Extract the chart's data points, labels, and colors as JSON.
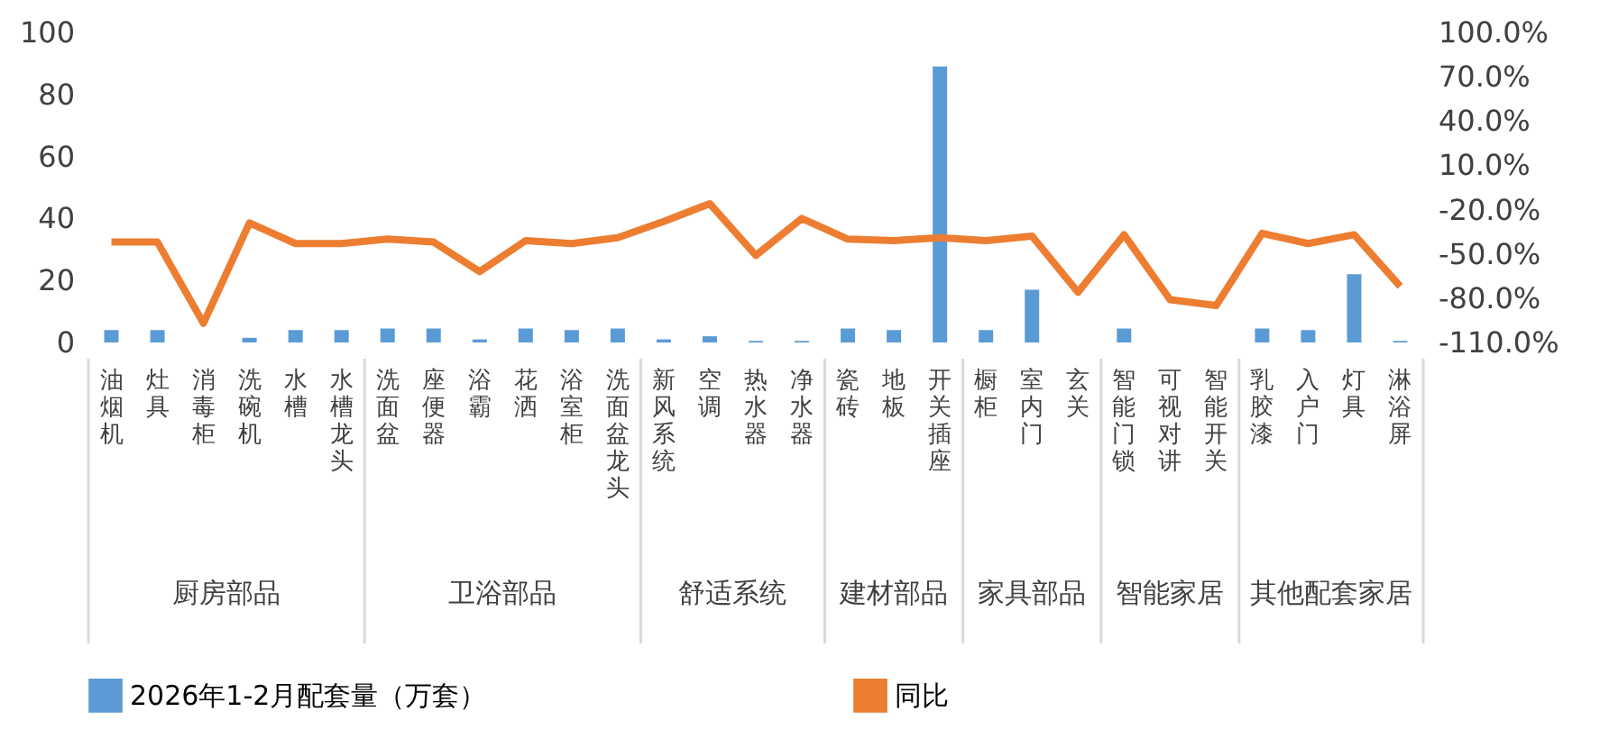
{
  "chart_data": {
    "type": "bar",
    "categories": [
      "油烟机",
      "灶具",
      "消毒柜",
      "洗碗机",
      "水槽",
      "水槽龙头",
      "洗面盆",
      "座便器",
      "浴霸",
      "花洒",
      "浴室柜",
      "洗面盆龙头",
      "新风系统",
      "空调",
      "热水器",
      "净水器",
      "瓷砖",
      "地板",
      "开关插座",
      "橱柜",
      "室内门",
      "玄关",
      "智能门锁",
      "可视对讲",
      "智能开关",
      "乳胶漆",
      "入户门",
      "灯具",
      "淋浴屏"
    ],
    "series": [
      {
        "name": "2026年1-2月配套量（万套）",
        "color": "#5b9bd5",
        "values": [
          4,
          4,
          0,
          1.5,
          4,
          4,
          4.5,
          4.5,
          1,
          4.5,
          4,
          4.5,
          1,
          2,
          0.5,
          0.5,
          4.5,
          4,
          89,
          4,
          17,
          0,
          4.5,
          0,
          0,
          4.5,
          4,
          22,
          0.5
        ]
      },
      {
        "name": "同比",
        "type": "line",
        "axis": "y2",
        "color": "#ed7d31",
        "values": [
          -42,
          -42,
          -97,
          -29,
          -43,
          -43,
          -40,
          -42,
          -62,
          -41,
          -43,
          -39,
          -28,
          -16,
          -51,
          -26,
          -40,
          -41,
          -39,
          -41,
          -38,
          -76,
          -37,
          -81,
          -85,
          -36,
          -43,
          -37,
          -72
        ]
      }
    ],
    "ylim": [
      0,
      100
    ],
    "yticks": [
      0,
      20,
      40,
      60,
      80,
      100
    ],
    "y2lim": [
      -110,
      100
    ],
    "y2ticks": [
      {
        "value": -110,
        "label": "-110.0%"
      },
      {
        "value": -80,
        "label": "-80.0%"
      },
      {
        "value": -50,
        "label": "-50.0%"
      },
      {
        "value": -20,
        "label": "-20.0%"
      },
      {
        "value": 10,
        "label": "10.0%"
      },
      {
        "value": 40,
        "label": "40.0%"
      },
      {
        "value": 70,
        "label": "70.0%"
      },
      {
        "value": 100,
        "label": "100.0%"
      }
    ],
    "annotations": [
      "厨房部品",
      "卫浴部品",
      "舒适系统",
      "建材部品",
      "家具部品",
      "智能家居",
      "其他配套家居"
    ],
    "grid": false,
    "legend": "bottom"
  }
}
